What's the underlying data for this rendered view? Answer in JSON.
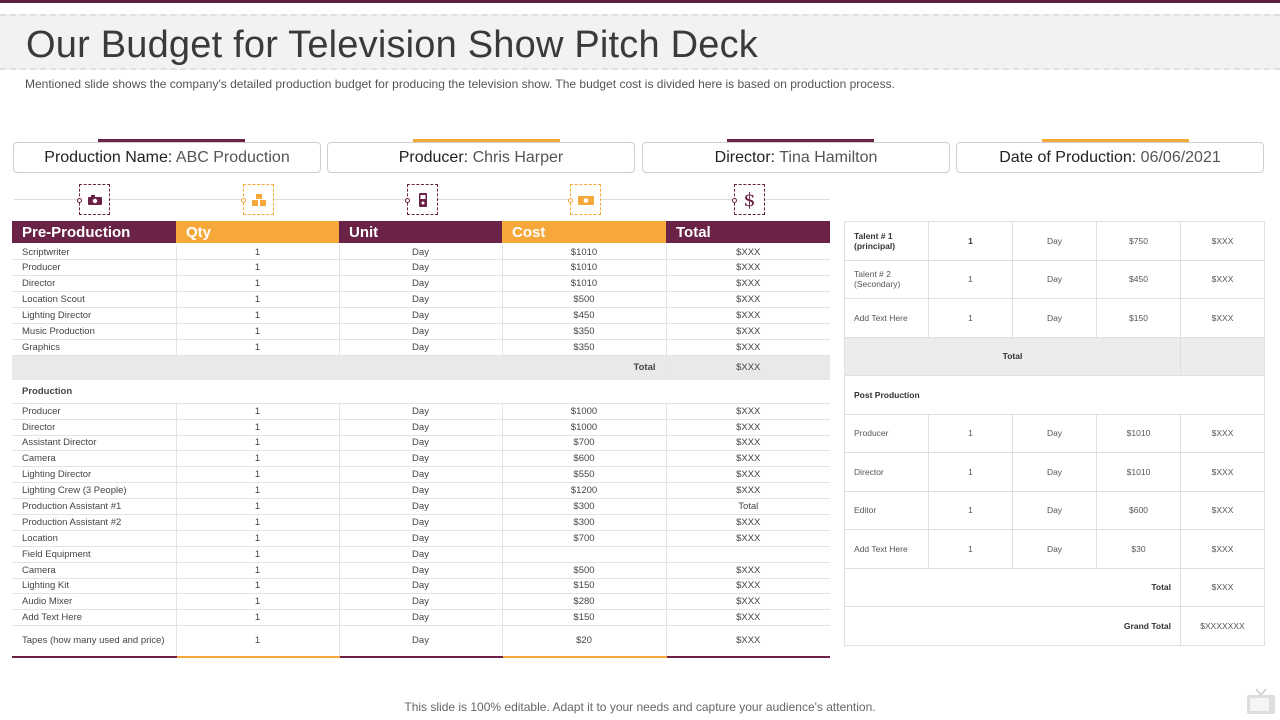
{
  "page": {
    "title": "Our Budget for Television Show Pitch Deck",
    "subtitle": "Mentioned slide shows the company's detailed production budget for producing the television show. The budget cost is divided here is based on production process.",
    "footer": "This slide is 100% editable. Adapt it to your needs and capture your audience's attention."
  },
  "info": [
    {
      "label": "Production Name:",
      "value": "ABC Production"
    },
    {
      "label": "Producer:",
      "value": "Chris Harper"
    },
    {
      "label": "Director:",
      "value": "Tina Hamilton"
    },
    {
      "label": "Date of Production:",
      "value": "06/06/2021"
    }
  ],
  "icons": [
    "camera-icon",
    "boxes-icon",
    "phone-icon",
    "cash-icon",
    "dollar-icon"
  ],
  "colors": {
    "maroon": "#6b2247",
    "orange": "#f6a83a"
  },
  "left_table": {
    "headers": [
      "Pre-Production",
      "Qty",
      "Unit",
      "Cost",
      "Total"
    ],
    "pre_production": [
      [
        "Scriptwriter",
        "1",
        "Day",
        "$1010",
        "$XXX"
      ],
      [
        "Producer",
        "1",
        "Day",
        "$1010",
        "$XXX"
      ],
      [
        "Director",
        "1",
        "Day",
        "$1010",
        "$XXX"
      ],
      [
        "Location Scout",
        "1",
        "Day",
        "$500",
        "$XXX"
      ],
      [
        "Lighting Director",
        "1",
        "Day",
        "$450",
        "$XXX"
      ],
      [
        "Music Production",
        "1",
        "Day",
        "$350",
        "$XXX"
      ],
      [
        "Graphics",
        "1",
        "Day",
        "$350",
        "$XXX"
      ]
    ],
    "pre_total_label": "Total",
    "pre_total_value": "$XXX",
    "production_label": "Production",
    "production": [
      [
        "Producer",
        "1",
        "Day",
        "$1000",
        "$XXX"
      ],
      [
        "Director",
        "1",
        "Day",
        "$1000",
        "$XXX"
      ],
      [
        "Assistant Director",
        "1",
        "Day",
        "$700",
        "$XXX"
      ],
      [
        "Camera",
        "1",
        "Day",
        "$600",
        "$XXX"
      ],
      [
        "Lighting Director",
        "1",
        "Day",
        "$550",
        "$XXX"
      ],
      [
        "Lighting Crew (3 People)",
        "1",
        "Day",
        "$1200",
        "$XXX"
      ],
      [
        "Production Assistant #1",
        "1",
        "Day",
        "$300",
        "Total"
      ],
      [
        "Production Assistant #2",
        "1",
        "Day",
        "$300",
        "$XXX"
      ],
      [
        "Location",
        "1",
        "Day",
        "$700",
        "$XXX"
      ],
      [
        "Field Equipment",
        "1",
        "Day",
        "",
        ""
      ],
      [
        "Camera",
        "1",
        "Day",
        "$500",
        "$XXX"
      ],
      [
        "Lighting Kit",
        "1",
        "Day",
        "$150",
        "$XXX"
      ],
      [
        "Audio Mixer",
        "1",
        "Day",
        "$280",
        "$XXX"
      ],
      [
        "Add Text Here",
        "1",
        "Day",
        "$150",
        "$XXX"
      ],
      [
        "Tapes (how many used and price)",
        "1",
        "Day",
        "$20",
        "$XXX"
      ]
    ]
  },
  "right_table": {
    "talent": [
      [
        "Talent # 1\n(principal)",
        "1",
        "Day",
        "$750",
        "$XXX"
      ],
      [
        "Talent # 2\n(Secondary)",
        "1",
        "Day",
        "$450",
        "$XXX"
      ],
      [
        "Add Text Here",
        "1",
        "Day",
        "$150",
        "$XXX"
      ]
    ],
    "talent_total_label": "Total",
    "post_label": "Post Production",
    "post": [
      [
        "Producer",
        "1",
        "Day",
        "$1010",
        "$XXX"
      ],
      [
        "Director",
        "1",
        "Day",
        "$1010",
        "$XXX"
      ],
      [
        "Editor",
        "1",
        "Day",
        "$600",
        "$XXX"
      ],
      [
        "Add Text Here",
        "1",
        "Day",
        "$30",
        "$XXX"
      ]
    ],
    "total_label": "Total",
    "total_value": "$XXX",
    "grand_total_label": "Grand Total",
    "grand_total_value": "$XXXXXXX"
  }
}
